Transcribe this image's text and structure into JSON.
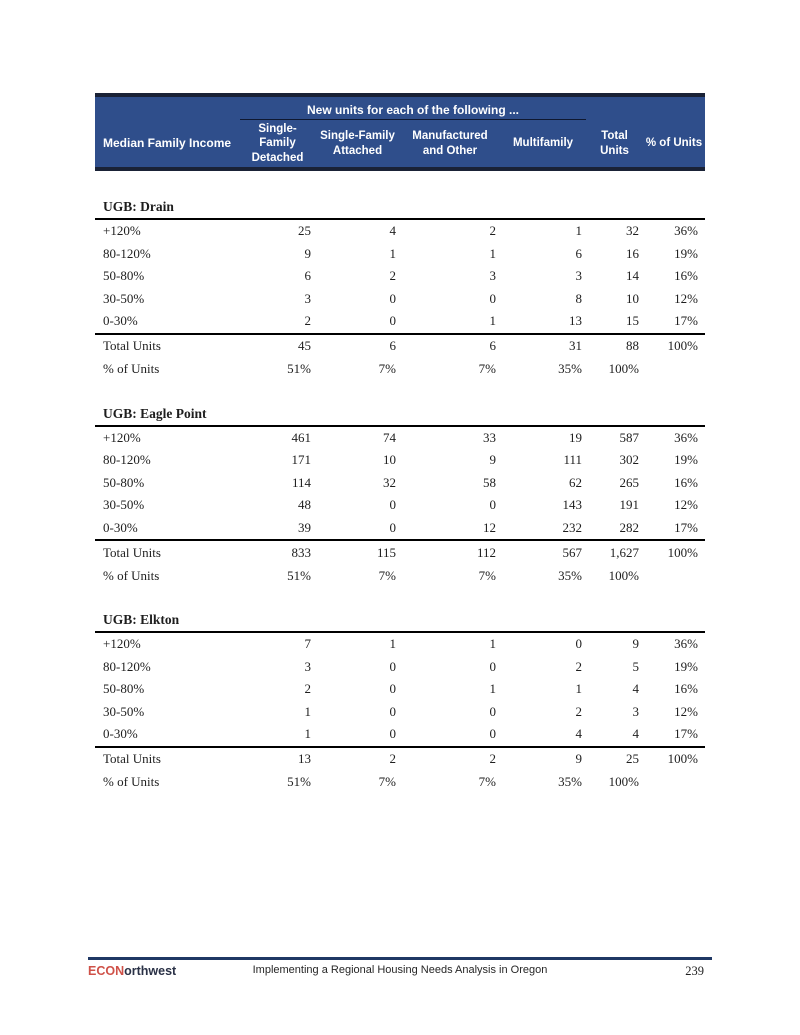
{
  "colors": {
    "header_bg": "#2f4e8b",
    "header_border": "#1a2236",
    "header_text": "#ffffff",
    "body_text": "#1e1e1e",
    "section_rule": "#000000",
    "footer_rule": "#1f3864",
    "logo_red": "#cf5148",
    "logo_dark": "#2a3146"
  },
  "table": {
    "spanner": "New units for each of the following ...",
    "columns": [
      "Median Family Income",
      "Single-Family Detached",
      "Single-Family Attached",
      "Manufactured and Other",
      "Multifamily",
      "Total Units",
      "% of Units"
    ],
    "sections": [
      {
        "title": "UGB: Drain",
        "rows": [
          [
            "+120%",
            "25",
            "4",
            "2",
            "1",
            "32",
            "36%"
          ],
          [
            "80-120%",
            "9",
            "1",
            "1",
            "6",
            "16",
            "19%"
          ],
          [
            "50-80%",
            "6",
            "2",
            "3",
            "3",
            "14",
            "16%"
          ],
          [
            "30-50%",
            "3",
            "0",
            "0",
            "8",
            "10",
            "12%"
          ],
          [
            "0-30%",
            "2",
            "0",
            "1",
            "13",
            "15",
            "17%"
          ]
        ],
        "total": [
          "Total Units",
          "45",
          "6",
          "6",
          "31",
          "88",
          "100%"
        ],
        "pct": [
          "% of Units",
          "51%",
          "7%",
          "7%",
          "35%",
          "100%",
          ""
        ]
      },
      {
        "title": "UGB: Eagle Point",
        "rows": [
          [
            "+120%",
            "461",
            "74",
            "33",
            "19",
            "587",
            "36%"
          ],
          [
            "80-120%",
            "171",
            "10",
            "9",
            "111",
            "302",
            "19%"
          ],
          [
            "50-80%",
            "114",
            "32",
            "58",
            "62",
            "265",
            "16%"
          ],
          [
            "30-50%",
            "48",
            "0",
            "0",
            "143",
            "191",
            "12%"
          ],
          [
            "0-30%",
            "39",
            "0",
            "12",
            "232",
            "282",
            "17%"
          ]
        ],
        "total": [
          "Total Units",
          "833",
          "115",
          "112",
          "567",
          "1,627",
          "100%"
        ],
        "pct": [
          "% of Units",
          "51%",
          "7%",
          "7%",
          "35%",
          "100%",
          ""
        ]
      },
      {
        "title": "UGB: Elkton",
        "rows": [
          [
            "+120%",
            "7",
            "1",
            "1",
            "0",
            "9",
            "36%"
          ],
          [
            "80-120%",
            "3",
            "0",
            "0",
            "2",
            "5",
            "19%"
          ],
          [
            "50-80%",
            "2",
            "0",
            "1",
            "1",
            "4",
            "16%"
          ],
          [
            "30-50%",
            "1",
            "0",
            "0",
            "2",
            "3",
            "12%"
          ],
          [
            "0-30%",
            "1",
            "0",
            "0",
            "4",
            "4",
            "17%"
          ]
        ],
        "total": [
          "Total Units",
          "13",
          "2",
          "2",
          "9",
          "25",
          "100%"
        ],
        "pct": [
          "% of Units",
          "51%",
          "7%",
          "7%",
          "35%",
          "100%",
          ""
        ]
      }
    ]
  },
  "footer": {
    "logo_primary": "ECON",
    "logo_secondary": "orthwest",
    "document_title": "Implementing a Regional Housing Needs Analysis in Oregon",
    "page_number": "239"
  }
}
